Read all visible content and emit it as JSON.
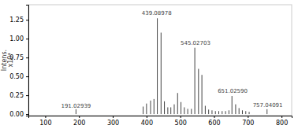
{
  "chart_data": {
    "type": "bar",
    "y_label": "Intens.\nx10⁴",
    "x": [
      191,
      390,
      400,
      412,
      422,
      432,
      443,
      453,
      463,
      472,
      482,
      492,
      502,
      512,
      522,
      533,
      543,
      554,
      564,
      574,
      584,
      594,
      604,
      614,
      624,
      634,
      644,
      653,
      664,
      674,
      684,
      694,
      704,
      757
    ],
    "values": [
      0.065,
      0.1,
      0.14,
      0.18,
      0.2,
      1.27,
      1.08,
      0.17,
      0.09,
      0.09,
      0.13,
      0.28,
      0.16,
      0.09,
      0.07,
      0.07,
      0.88,
      0.6,
      0.52,
      0.11,
      0.06,
      0.05,
      0.04,
      0.04,
      0.04,
      0.04,
      0.05,
      0.24,
      0.13,
      0.08,
      0.05,
      0.04,
      0.03,
      0.065
    ],
    "color": "#444444",
    "xlim": [
      50,
      830
    ],
    "ylim": [
      -0.02,
      1.45
    ],
    "xticks": [
      100,
      200,
      300,
      400,
      500,
      600,
      700,
      800
    ],
    "yticks": [
      {
        "value": 0,
        "label": "0.00"
      },
      0.25,
      {
        "value": 0.5,
        "label": "0.50"
      },
      0.75,
      {
        "value": 1,
        "label": "1.00"
      },
      1.25
    ],
    "grid": false,
    "annotations": [
      {
        "text": "191.02939",
        "x": 191,
        "y": 0.075
      },
      {
        "text": "439.08978",
        "x": 430,
        "y": 1.3
      },
      {
        "text": "545.02703",
        "x": 545,
        "y": 0.91
      },
      {
        "text": "651.02590",
        "x": 655,
        "y": 0.27
      },
      {
        "text": "757.04091",
        "x": 759,
        "y": 0.08
      }
    ]
  }
}
